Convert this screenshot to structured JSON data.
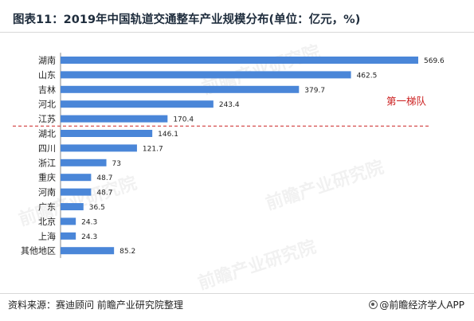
{
  "header": {
    "title": "图表11：2019年中国轨道交通整车产业规模分布(单位：亿元，%)"
  },
  "footer": {
    "source": "资料来源：赛迪顾问 前瞻产业研究院整理",
    "credit": "@前瞻经济学人APP"
  },
  "watermark": {
    "text": "前瞻产业研究院"
  },
  "colors": {
    "bar": "#4a86d8",
    "divider": "#cc2222",
    "annotation": "#cc2222"
  },
  "chart_data": {
    "type": "bar",
    "orientation": "horizontal",
    "categories": [
      "湖南",
      "山东",
      "吉林",
      "河北",
      "江苏",
      "湖北",
      "四川",
      "浙江",
      "重庆",
      "河南",
      "广东",
      "北京",
      "上海",
      "其他地区"
    ],
    "values": [
      569.6,
      462.5,
      379.7,
      243.4,
      170.4,
      146.1,
      121.7,
      73,
      48.7,
      48.7,
      36.5,
      24.3,
      24.3,
      85.2
    ],
    "value_labels": [
      "569.6",
      "462.5",
      "379.7",
      "243.4",
      "170.4",
      "146.1",
      "121.7",
      "73",
      "48.7",
      "48.7",
      "36.5",
      "24.3",
      "24.3",
      "85.2"
    ],
    "title": "图表11：2019年中国轨道交通整车产业规模分布(单位：亿元，%)",
    "xlim": [
      0,
      569.6
    ],
    "grid": false,
    "legend": "none",
    "annotations": [
      {
        "text": "第一梯队",
        "after_category": "江苏",
        "style": "dashed-divider"
      }
    ]
  }
}
